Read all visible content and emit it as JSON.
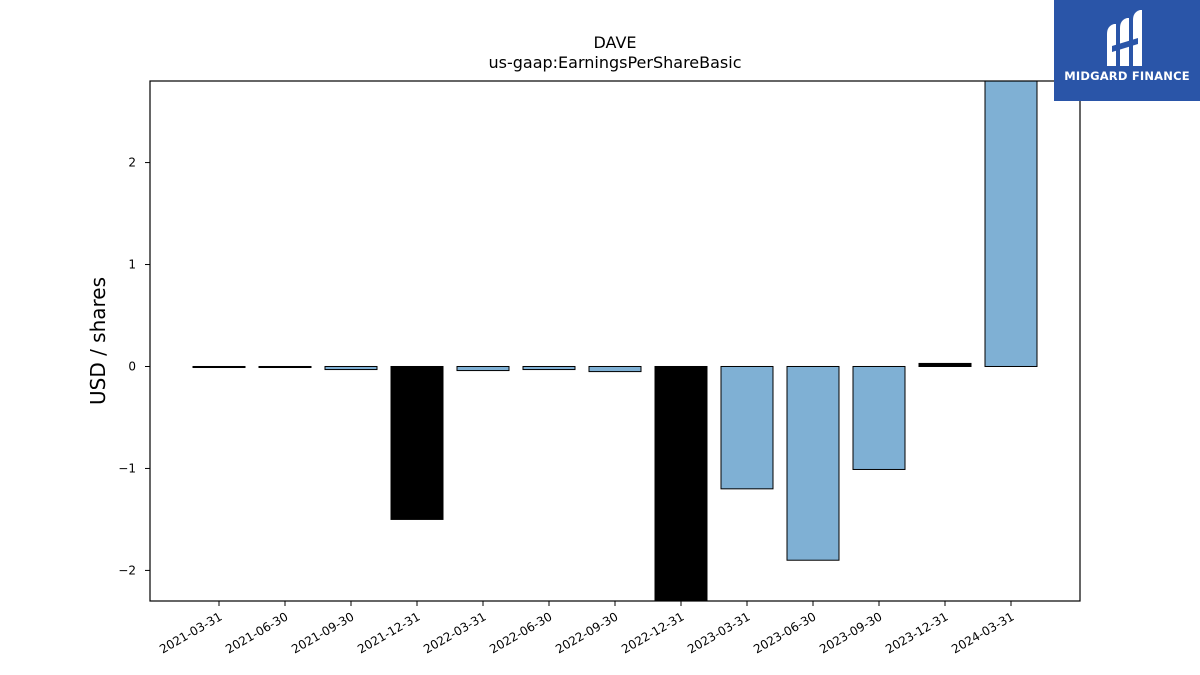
{
  "brand": {
    "name": "MIDGARD FINANCE",
    "background": "#2a55a8",
    "icon": "midgard-logo-icon"
  },
  "chart_data": {
    "type": "bar",
    "title": "DAVE",
    "subtitle": "us-gaap:EarningsPerShareBasic",
    "xlabel": "",
    "ylabel": "USD / shares",
    "categories": [
      "2021-03-31",
      "2021-06-30",
      "2021-09-30",
      "2021-12-31",
      "2022-03-31",
      "2022-06-30",
      "2022-09-30",
      "2022-12-31",
      "2023-03-31",
      "2023-06-30",
      "2023-09-30",
      "2023-12-31",
      "2024-03-31"
    ],
    "values": [
      -0.01,
      -0.01,
      -0.03,
      -1.5,
      -0.04,
      -0.03,
      -0.05,
      -2.3,
      -1.2,
      -1.9,
      -1.01,
      0.03,
      2.8
    ],
    "bar_colors": [
      "#000000",
      "#000000",
      "#7fb0d4",
      "#000000",
      "#7fb0d4",
      "#7fb0d4",
      "#7fb0d4",
      "#000000",
      "#7fb0d4",
      "#7fb0d4",
      "#7fb0d4",
      "#000000",
      "#7fb0d4"
    ],
    "ylim": [
      -2.3,
      2.8
    ],
    "yticks": [
      -2,
      -1,
      0,
      1,
      2
    ],
    "ytick_labels": [
      "−2",
      "−1",
      "0",
      "1",
      "2"
    ],
    "grid": false,
    "legend": "none"
  }
}
